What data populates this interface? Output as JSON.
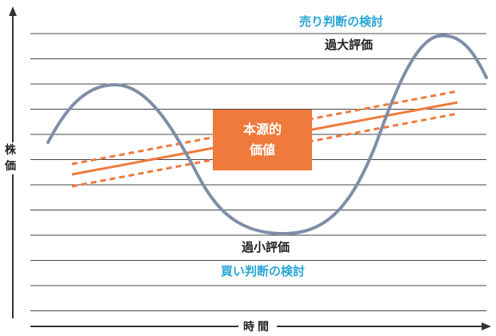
{
  "labels": {
    "sell_consider": "売り判断の検討",
    "overvalued": "過大評価",
    "undervalued": "過小評価",
    "buy_consider": "買い判断の検討",
    "intrinsic_line1": "本源的",
    "intrinsic_line2": "価値",
    "y_axis_line1": "株",
    "y_axis_line2": "価",
    "x_axis": "時間"
  },
  "colors": {
    "price_curve": "#7f8ea8",
    "intrinsic": "#f07a3c",
    "sell_text": "#2aa6d6",
    "buy_text": "#2aa6d6",
    "grid": "#444444",
    "axis": "#333333"
  }
}
